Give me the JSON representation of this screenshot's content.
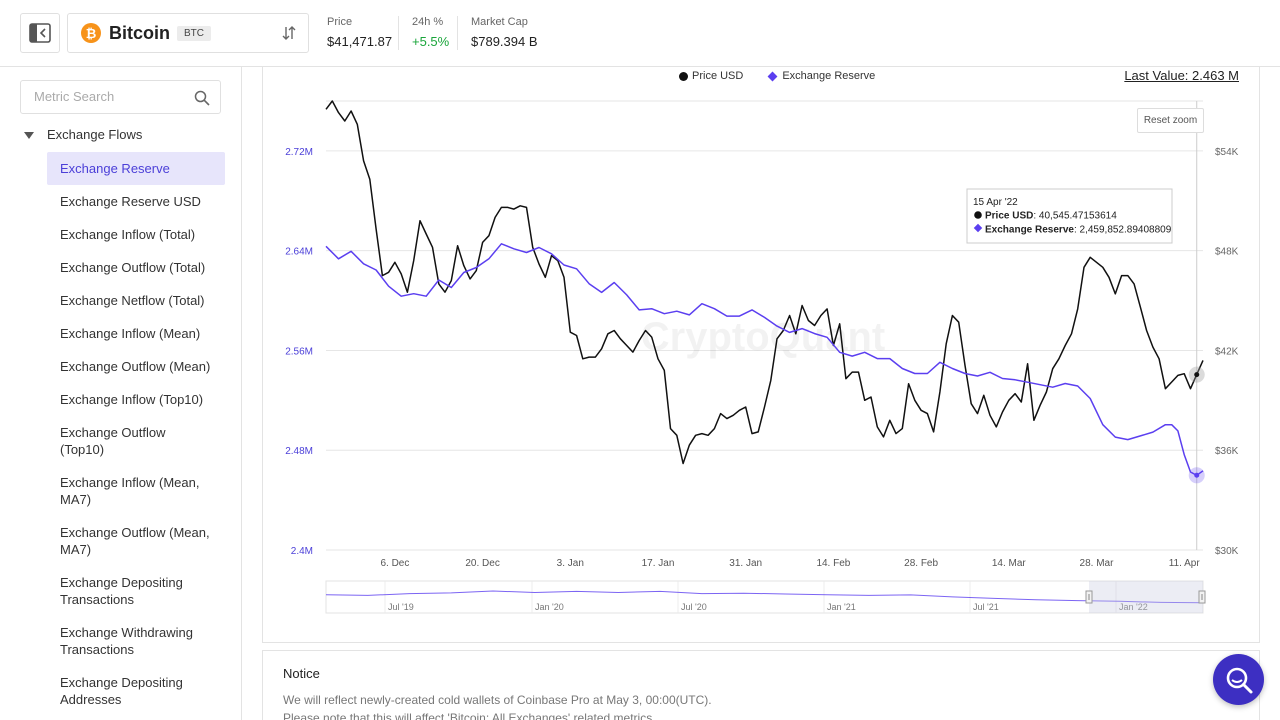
{
  "header": {
    "asset_name": "Bitcoin",
    "asset_ticker": "BTC",
    "price_label": "Price",
    "price_value": "$41,471.87",
    "change_label": "24h %",
    "change_value": "+5.5%",
    "mcap_label": "Market Cap",
    "mcap_value": "$789.394 B"
  },
  "sidebar": {
    "search_placeholder": "Metric Search",
    "group_label": "Exchange Flows",
    "items": [
      {
        "label": "Exchange Reserve",
        "active": true
      },
      {
        "label": "Exchange Reserve USD"
      },
      {
        "label": "Exchange Inflow (Total)"
      },
      {
        "label": "Exchange Outflow (Total)"
      },
      {
        "label": "Exchange Netflow (Total)"
      },
      {
        "label": "Exchange Inflow (Mean)"
      },
      {
        "label": "Exchange Outflow (Mean)"
      },
      {
        "label": "Exchange Inflow (Top10)"
      },
      {
        "label": "Exchange Outflow (Top10)"
      },
      {
        "label": "Exchange Inflow (Mean, MA7)"
      },
      {
        "label": "Exchange Outflow (Mean, MA7)"
      },
      {
        "label": "Exchange Depositing Transactions"
      },
      {
        "label": "Exchange Withdrawing Transactions"
      },
      {
        "label": "Exchange Depositing Addresses"
      }
    ]
  },
  "chart": {
    "legend_price": "Price USD",
    "legend_reserve": "Exchange Reserve",
    "last_value": "Last Value: 2.463 M",
    "reset_zoom": "Reset zoom",
    "watermark": "CryptoQuant",
    "tooltip": {
      "date": "15 Apr '22",
      "price_label": "Price USD",
      "price_value": ": 40,545.47153614",
      "reserve_label": "Exchange Reserve",
      "reserve_value": ": 2,459,852.89408809"
    },
    "colors": {
      "price": "#111111",
      "reserve": "#5b3ff0",
      "left_axis": "#4b3fd8"
    }
  },
  "chart_data": {
    "type": "line",
    "left_axis_ticks": [
      "2.72M",
      "2.64M",
      "2.56M",
      "2.48M",
      "2.4M"
    ],
    "right_axis_ticks": [
      "$54K",
      "$48K",
      "$42K",
      "$36K",
      "$30K"
    ],
    "x_ticks": [
      "6. Dec",
      "20. Dec",
      "3. Jan",
      "17. Jan",
      "31. Jan",
      "14. Feb",
      "28. Feb",
      "14. Mar",
      "28. Mar",
      "11. Apr"
    ],
    "navigator_ticks": [
      "Jul '19",
      "Jan '20",
      "Jul '20",
      "Jan '21",
      "Jul '21",
      "Jan '22"
    ],
    "ylim_left": [
      2.4,
      2.76
    ],
    "ylim_right": [
      30000,
      57000
    ],
    "x_start": "2021-11-25",
    "x_end": "2022-04-17",
    "series": [
      {
        "name": "Price USD",
        "axis": "right",
        "values": [
          [
            0,
            56500
          ],
          [
            1,
            57000
          ],
          [
            2,
            56300
          ],
          [
            3,
            55800
          ],
          [
            4,
            56400
          ],
          [
            5,
            55600
          ],
          [
            6,
            53400
          ],
          [
            7,
            52300
          ],
          [
            8,
            49300
          ],
          [
            9,
            46500
          ],
          [
            10,
            46700
          ],
          [
            11,
            47300
          ],
          [
            12,
            46600
          ],
          [
            13,
            45500
          ],
          [
            14,
            47400
          ],
          [
            15,
            49800
          ],
          [
            16,
            49000
          ],
          [
            17,
            48200
          ],
          [
            18,
            46000
          ],
          [
            19,
            45500
          ],
          [
            20,
            46200
          ],
          [
            21,
            48300
          ],
          [
            22,
            47100
          ],
          [
            23,
            46300
          ],
          [
            24,
            46800
          ],
          [
            25,
            48500
          ],
          [
            26,
            48900
          ],
          [
            27,
            50000
          ],
          [
            28,
            50600
          ],
          [
            29,
            50600
          ],
          [
            30,
            50500
          ],
          [
            31,
            50700
          ],
          [
            32,
            50600
          ],
          [
            33,
            48200
          ],
          [
            34,
            47200
          ],
          [
            35,
            46400
          ],
          [
            36,
            47700
          ],
          [
            37,
            47400
          ],
          [
            38,
            46400
          ],
          [
            39,
            43100
          ],
          [
            40,
            42900
          ],
          [
            41,
            41500
          ],
          [
            42,
            41600
          ],
          [
            43,
            41600
          ],
          [
            44,
            42100
          ],
          [
            45,
            43000
          ],
          [
            46,
            43200
          ],
          [
            47,
            42700
          ],
          [
            48,
            42300
          ],
          [
            49,
            41900
          ],
          [
            50,
            42600
          ],
          [
            51,
            43200
          ],
          [
            52,
            42800
          ],
          [
            53,
            41500
          ],
          [
            54,
            40800
          ],
          [
            55,
            37300
          ],
          [
            56,
            36900
          ],
          [
            57,
            35200
          ],
          [
            58,
            36300
          ],
          [
            59,
            36900
          ],
          [
            60,
            37000
          ],
          [
            61,
            36900
          ],
          [
            62,
            37300
          ],
          [
            63,
            38200
          ],
          [
            64,
            37900
          ],
          [
            65,
            38100
          ],
          [
            66,
            38400
          ],
          [
            67,
            38600
          ],
          [
            68,
            37000
          ],
          [
            69,
            37100
          ],
          [
            70,
            38600
          ],
          [
            71,
            40200
          ],
          [
            72,
            42700
          ],
          [
            73,
            43200
          ],
          [
            74,
            44100
          ],
          [
            75,
            43000
          ],
          [
            76,
            44700
          ],
          [
            77,
            43800
          ],
          [
            78,
            43500
          ],
          [
            79,
            44100
          ],
          [
            80,
            44500
          ],
          [
            81,
            42300
          ],
          [
            82,
            43600
          ],
          [
            83,
            40300
          ],
          [
            84,
            40700
          ],
          [
            85,
            40700
          ],
          [
            86,
            39000
          ],
          [
            87,
            39200
          ],
          [
            88,
            37400
          ],
          [
            89,
            36800
          ],
          [
            90,
            37800
          ],
          [
            91,
            37000
          ],
          [
            92,
            37300
          ],
          [
            93,
            40000
          ],
          [
            94,
            39000
          ],
          [
            95,
            38400
          ],
          [
            96,
            38200
          ],
          [
            97,
            37100
          ],
          [
            98,
            39500
          ],
          [
            99,
            42400
          ],
          [
            100,
            44100
          ],
          [
            101,
            43700
          ],
          [
            102,
            41100
          ],
          [
            103,
            38800
          ],
          [
            104,
            38200
          ],
          [
            105,
            39300
          ],
          [
            106,
            38100
          ],
          [
            107,
            37400
          ],
          [
            108,
            38300
          ],
          [
            109,
            39000
          ],
          [
            110,
            39400
          ],
          [
            111,
            38900
          ],
          [
            112,
            41200
          ],
          [
            113,
            37800
          ],
          [
            114,
            38700
          ],
          [
            115,
            39500
          ],
          [
            116,
            40900
          ],
          [
            117,
            41500
          ],
          [
            118,
            42300
          ],
          [
            119,
            43000
          ],
          [
            120,
            44500
          ],
          [
            121,
            47000
          ],
          [
            122,
            47600
          ],
          [
            123,
            47300
          ],
          [
            124,
            47000
          ],
          [
            125,
            46400
          ],
          [
            126,
            45400
          ],
          [
            127,
            46500
          ],
          [
            128,
            46500
          ],
          [
            129,
            46000
          ],
          [
            130,
            44600
          ],
          [
            131,
            43200
          ],
          [
            132,
            42200
          ],
          [
            133,
            41500
          ],
          [
            134,
            39700
          ],
          [
            135,
            40100
          ],
          [
            136,
            40500
          ],
          [
            137,
            40600
          ],
          [
            138,
            39700
          ],
          [
            139,
            40545
          ],
          [
            140,
            41400
          ]
        ]
      },
      {
        "name": "Exchange Reserve",
        "axis": "left",
        "values": [
          [
            0,
            2.6435
          ],
          [
            2,
            2.6335
          ],
          [
            4,
            2.6395
          ],
          [
            6,
            2.6295
          ],
          [
            8,
            2.6245
          ],
          [
            10,
            2.6115
          ],
          [
            12,
            2.6035
          ],
          [
            14,
            2.6055
          ],
          [
            16,
            2.6035
          ],
          [
            18,
            2.6165
          ],
          [
            20,
            2.6105
          ],
          [
            22,
            2.6225
          ],
          [
            24,
            2.6265
          ],
          [
            26,
            2.6335
          ],
          [
            28,
            2.6455
          ],
          [
            30,
            2.6415
          ],
          [
            32,
            2.6385
          ],
          [
            34,
            2.6425
          ],
          [
            36,
            2.6375
          ],
          [
            38,
            2.6285
          ],
          [
            40,
            2.6255
          ],
          [
            42,
            2.6135
          ],
          [
            44,
            2.6065
          ],
          [
            46,
            2.6145
          ],
          [
            48,
            2.6045
          ],
          [
            50,
            2.5925
          ],
          [
            52,
            2.5935
          ],
          [
            54,
            2.5895
          ],
          [
            56,
            2.5915
          ],
          [
            58,
            2.5885
          ],
          [
            60,
            2.5975
          ],
          [
            62,
            2.5935
          ],
          [
            64,
            2.5875
          ],
          [
            66,
            2.5875
          ],
          [
            68,
            2.5925
          ],
          [
            70,
            2.5865
          ],
          [
            72,
            2.5795
          ],
          [
            74,
            2.5745
          ],
          [
            76,
            2.5775
          ],
          [
            78,
            2.5735
          ],
          [
            80,
            2.5705
          ],
          [
            82,
            2.5585
          ],
          [
            84,
            2.5555
          ],
          [
            86,
            2.5585
          ],
          [
            88,
            2.5535
          ],
          [
            90,
            2.5535
          ],
          [
            92,
            2.5455
          ],
          [
            94,
            2.5415
          ],
          [
            96,
            2.5415
          ],
          [
            98,
            2.5505
          ],
          [
            100,
            2.5455
          ],
          [
            102,
            2.5415
          ],
          [
            104,
            2.5395
          ],
          [
            106,
            2.5425
          ],
          [
            108,
            2.5375
          ],
          [
            110,
            2.5365
          ],
          [
            112,
            2.5345
          ],
          [
            114,
            2.5325
          ],
          [
            116,
            2.5305
          ],
          [
            118,
            2.5335
          ],
          [
            120,
            2.5315
          ],
          [
            122,
            2.5215
          ],
          [
            124,
            2.5005
          ],
          [
            126,
            2.4905
          ],
          [
            128,
            2.4885
          ],
          [
            130,
            2.4915
          ],
          [
            132,
            2.4945
          ],
          [
            134,
            2.5005
          ],
          [
            135,
            2.5005
          ],
          [
            136,
            2.4955
          ],
          [
            137,
            2.4765
          ],
          [
            138,
            2.4625
          ],
          [
            139,
            2.4599
          ],
          [
            140,
            2.4635
          ]
        ]
      }
    ],
    "navigator_series": [
      [
        0,
        0.35
      ],
      [
        5,
        0.38
      ],
      [
        10,
        0.3
      ],
      [
        15,
        0.27
      ],
      [
        20,
        0.18
      ],
      [
        25,
        0.25
      ],
      [
        30,
        0.2
      ],
      [
        35,
        0.25
      ],
      [
        40,
        0.2
      ],
      [
        45,
        0.3
      ],
      [
        50,
        0.28
      ],
      [
        55,
        0.32
      ],
      [
        60,
        0.35
      ],
      [
        65,
        0.38
      ],
      [
        70,
        0.36
      ],
      [
        75,
        0.45
      ],
      [
        80,
        0.52
      ],
      [
        85,
        0.58
      ],
      [
        90,
        0.62
      ],
      [
        95,
        0.65
      ],
      [
        100,
        0.7
      ],
      [
        105,
        0.72
      ]
    ]
  },
  "notice": {
    "title": "Notice",
    "line1": "We will reflect newly-created cold wallets of Coinbase Pro at May 3, 00:00(UTC).",
    "line2": "Please note that this will affect 'Bitcoin: All Exchanges' related metrics."
  }
}
